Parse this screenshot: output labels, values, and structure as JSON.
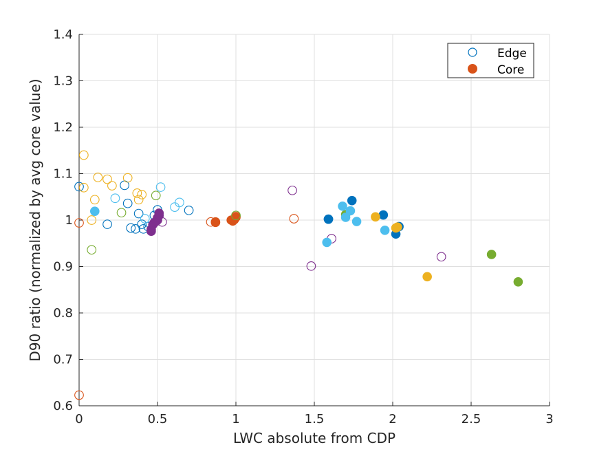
{
  "chart_data": {
    "type": "scatter",
    "title": "",
    "xlabel": "LWC absolute from CDP",
    "ylabel": "D90 ratio (normalized by avg core value)",
    "xlim": [
      0,
      3
    ],
    "ylim": [
      0.6,
      1.4
    ],
    "xticks": [
      0,
      0.5,
      1,
      1.5,
      2,
      2.5,
      3
    ],
    "xtick_labels": [
      "0",
      "0.5",
      "1",
      "1.5",
      "2",
      "2.5",
      "3"
    ],
    "yticks": [
      0.6,
      0.7,
      0.8,
      0.9,
      1.0,
      1.1,
      1.2,
      1.3,
      1.4
    ],
    "ytick_labels": [
      "0.6",
      "0.7",
      "0.8",
      "0.9",
      "1",
      "1.1",
      "1.2",
      "1.3",
      "1.4"
    ],
    "grid": true,
    "legend_position": "top-right",
    "legend": [
      {
        "label": "Edge",
        "marker": "open-circle",
        "color": "#0072BD"
      },
      {
        "label": "Core",
        "marker": "filled-circle",
        "color": "#D95319"
      }
    ],
    "series": [
      {
        "color": "#0072BD",
        "marker": "open",
        "x": [
          0.0,
          0.18,
          0.29,
          0.31,
          0.33,
          0.36,
          0.38,
          0.4,
          0.41,
          0.44,
          0.48,
          0.5,
          0.7
        ],
        "y": [
          1.072,
          0.991,
          1.075,
          1.036,
          0.983,
          0.981,
          1.014,
          0.991,
          0.981,
          0.986,
          1.01,
          1.022,
          1.021
        ]
      },
      {
        "color": "#0072BD",
        "marker": "filled",
        "x": [
          1.59,
          1.59,
          1.74,
          1.94,
          2.02,
          2.04
        ],
        "y": [
          1.002,
          1.002,
          1.042,
          1.011,
          0.97,
          0.986
        ]
      },
      {
        "color": "#D95319",
        "marker": "open",
        "x": [
          0.0,
          0.0,
          0.84,
          1.0,
          1.37
        ],
        "y": [
          0.994,
          0.623,
          0.996,
          1.008,
          1.003
        ]
      },
      {
        "color": "#D95319",
        "marker": "filled",
        "x": [
          0.87,
          0.87,
          0.97,
          0.98,
          0.99,
          1.0
        ],
        "y": [
          0.996,
          0.995,
          1.0,
          0.998,
          1.001,
          1.006
        ]
      },
      {
        "color": "#EDB120",
        "marker": "open",
        "x": [
          0.03,
          0.03,
          0.08,
          0.1,
          0.12,
          0.18,
          0.21,
          0.37,
          0.38,
          0.4,
          0.31
        ],
        "y": [
          1.14,
          1.07,
          1.0,
          1.044,
          1.092,
          1.088,
          1.074,
          1.058,
          1.044,
          1.055,
          1.091
        ]
      },
      {
        "color": "#EDB120",
        "marker": "filled",
        "x": [
          1.89,
          2.02,
          2.03,
          2.22
        ],
        "y": [
          1.007,
          0.983,
          0.985,
          0.878
        ]
      },
      {
        "color": "#7E2F8E",
        "marker": "open",
        "x": [
          1.36,
          1.48,
          1.61,
          2.31,
          0.53
        ],
        "y": [
          1.064,
          0.901,
          0.96,
          0.921,
          0.996
        ]
      },
      {
        "color": "#7E2F8E",
        "marker": "filled",
        "x": [
          0.46,
          0.46,
          0.47,
          0.48,
          0.49,
          0.5,
          0.5,
          0.51,
          0.51
        ],
        "y": [
          0.976,
          0.98,
          0.99,
          0.995,
          0.997,
          1.0,
          1.005,
          1.01,
          1.015
        ]
      },
      {
        "color": "#77AC30",
        "marker": "open",
        "x": [
          0.08,
          0.27,
          0.49,
          1.0
        ],
        "y": [
          0.936,
          1.016,
          1.053,
          1.01
        ]
      },
      {
        "color": "#77AC30",
        "marker": "filled",
        "x": [
          1.7,
          2.63,
          2.8
        ],
        "y": [
          1.012,
          0.926,
          0.867
        ]
      },
      {
        "color": "#4DBEEE",
        "marker": "open",
        "x": [
          0.23,
          0.52,
          0.61,
          0.64,
          0.42
        ],
        "y": [
          1.047,
          1.071,
          1.028,
          1.038,
          1.003
        ]
      },
      {
        "color": "#4DBEEE",
        "marker": "filled",
        "x": [
          0.1,
          1.58,
          1.68,
          1.7,
          1.73,
          1.77,
          1.95
        ],
        "y": [
          1.019,
          0.952,
          1.03,
          1.006,
          1.02,
          0.997,
          0.978
        ]
      }
    ]
  }
}
